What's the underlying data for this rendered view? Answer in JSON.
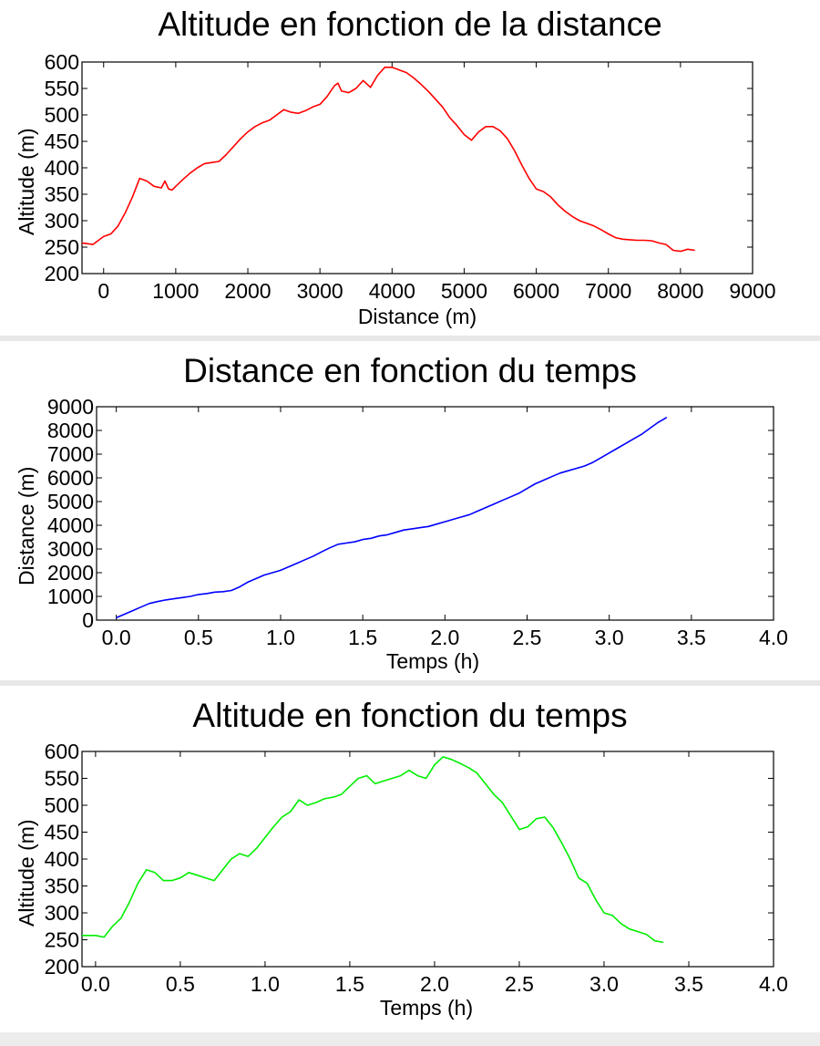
{
  "charts": [
    {
      "title": "Altitude en fonction de la distance",
      "xlabel": "Distance (m)",
      "ylabel": "Altitude (m)",
      "color": "#ff0000",
      "xticks": [
        "0",
        "1000",
        "2000",
        "3000",
        "4000",
        "5000",
        "6000",
        "7000",
        "8000",
        "9000"
      ],
      "yticks": [
        "200",
        "250",
        "300",
        "350",
        "400",
        "450",
        "500",
        "550",
        "600"
      ]
    },
    {
      "title": "Distance en fonction du temps",
      "xlabel": "Temps (h)",
      "ylabel": "Distance (m)",
      "color": "#0000ff",
      "xticks": [
        "0.0",
        "0.5",
        "1.0",
        "1.5",
        "2.0",
        "2.5",
        "3.0",
        "3.5",
        "4.0"
      ],
      "yticks": [
        "0",
        "1000",
        "2000",
        "3000",
        "4000",
        "5000",
        "6000",
        "7000",
        "8000",
        "9000"
      ]
    },
    {
      "title": "Altitude en fonction du temps",
      "xlabel": "Temps (h)",
      "ylabel": "Altitude (m)",
      "color": "#00ee00",
      "xticks": [
        "0.0",
        "0.5",
        "1.0",
        "1.5",
        "2.0",
        "2.5",
        "3.0",
        "3.5",
        "4.0"
      ],
      "yticks": [
        "200",
        "250",
        "300",
        "350",
        "400",
        "450",
        "500",
        "550",
        "600"
      ]
    }
  ],
  "chart_data": [
    {
      "type": "line",
      "title": "Altitude en fonction de la distance",
      "xlabel": "Distance (m)",
      "ylabel": "Altitude (m)",
      "xlim": [
        -300,
        9000
      ],
      "ylim": [
        200,
        600
      ],
      "grid": false,
      "series": [
        {
          "color": "#ff0000",
          "x": [
            -300,
            -150,
            0,
            100,
            200,
            300,
            400,
            500,
            600,
            700,
            800,
            850,
            900,
            950,
            1000,
            1100,
            1200,
            1300,
            1400,
            1500,
            1600,
            1700,
            1800,
            1900,
            2000,
            2100,
            2200,
            2300,
            2400,
            2500,
            2600,
            2700,
            2800,
            2900,
            3000,
            3100,
            3200,
            3250,
            3300,
            3400,
            3500,
            3600,
            3700,
            3800,
            3900,
            4000,
            4100,
            4200,
            4300,
            4400,
            4500,
            4600,
            4700,
            4800,
            4900,
            5000,
            5100,
            5200,
            5300,
            5400,
            5500,
            5600,
            5700,
            5800,
            5900,
            6000,
            6100,
            6200,
            6300,
            6400,
            6500,
            6600,
            6700,
            6800,
            6900,
            7000,
            7100,
            7200,
            7300,
            7400,
            7500,
            7600,
            7700,
            7800,
            7900,
            8000,
            8100,
            8200
          ],
          "y": [
            258,
            255,
            270,
            275,
            290,
            315,
            345,
            380,
            375,
            365,
            362,
            375,
            360,
            358,
            365,
            378,
            390,
            400,
            408,
            410,
            412,
            425,
            440,
            455,
            468,
            478,
            485,
            490,
            500,
            510,
            505,
            503,
            508,
            515,
            520,
            535,
            555,
            560,
            545,
            542,
            550,
            565,
            552,
            575,
            590,
            590,
            585,
            580,
            570,
            558,
            545,
            530,
            515,
            495,
            480,
            463,
            452,
            468,
            478,
            478,
            470,
            455,
            432,
            405,
            380,
            360,
            355,
            345,
            330,
            318,
            308,
            300,
            295,
            290,
            283,
            275,
            268,
            265,
            264,
            263,
            263,
            262,
            258,
            255,
            244,
            242,
            246,
            244
          ]
        }
      ]
    },
    {
      "type": "line",
      "title": "Distance en fonction du temps",
      "xlabel": "Temps (h)",
      "ylabel": "Distance (m)",
      "xlim": [
        -0.12,
        4.0
      ],
      "ylim": [
        0,
        9000
      ],
      "grid": false,
      "series": [
        {
          "color": "#0000ff",
          "x": [
            0.0,
            0.05,
            0.1,
            0.15,
            0.2,
            0.25,
            0.3,
            0.35,
            0.4,
            0.45,
            0.5,
            0.55,
            0.6,
            0.65,
            0.7,
            0.75,
            0.8,
            0.85,
            0.9,
            0.95,
            1.0,
            1.05,
            1.1,
            1.15,
            1.2,
            1.25,
            1.3,
            1.35,
            1.4,
            1.45,
            1.5,
            1.55,
            1.6,
            1.65,
            1.7,
            1.75,
            1.8,
            1.85,
            1.9,
            1.95,
            2.0,
            2.05,
            2.1,
            2.15,
            2.2,
            2.25,
            2.3,
            2.35,
            2.4,
            2.45,
            2.5,
            2.55,
            2.6,
            2.65,
            2.7,
            2.75,
            2.8,
            2.85,
            2.9,
            2.95,
            3.0,
            3.05,
            3.1,
            3.15,
            3.2,
            3.25,
            3.3,
            3.35
          ],
          "y": [
            100,
            250,
            400,
            550,
            700,
            780,
            850,
            900,
            950,
            1000,
            1080,
            1120,
            1180,
            1200,
            1250,
            1400,
            1600,
            1750,
            1900,
            2000,
            2100,
            2250,
            2400,
            2550,
            2700,
            2880,
            3050,
            3200,
            3250,
            3300,
            3400,
            3450,
            3550,
            3600,
            3700,
            3800,
            3850,
            3900,
            3950,
            4050,
            4150,
            4250,
            4350,
            4450,
            4600,
            4750,
            4900,
            5050,
            5200,
            5350,
            5550,
            5750,
            5900,
            6050,
            6200,
            6300,
            6400,
            6500,
            6650,
            6850,
            7050,
            7250,
            7450,
            7650,
            7850,
            8100,
            8350,
            8550
          ]
        }
      ]
    },
    {
      "type": "line",
      "title": "Altitude en fonction du temps",
      "xlabel": "Temps (h)",
      "ylabel": "Altitude (m)",
      "xlim": [
        -0.08,
        4.0
      ],
      "ylim": [
        200,
        600
      ],
      "grid": false,
      "series": [
        {
          "color": "#00ee00",
          "x": [
            -0.08,
            0.0,
            0.05,
            0.1,
            0.15,
            0.2,
            0.25,
            0.3,
            0.35,
            0.4,
            0.45,
            0.5,
            0.55,
            0.6,
            0.65,
            0.7,
            0.75,
            0.8,
            0.85,
            0.9,
            0.95,
            1.0,
            1.05,
            1.1,
            1.15,
            1.2,
            1.25,
            1.3,
            1.35,
            1.4,
            1.45,
            1.5,
            1.55,
            1.6,
            1.65,
            1.7,
            1.75,
            1.8,
            1.85,
            1.9,
            1.95,
            2.0,
            2.05,
            2.1,
            2.15,
            2.2,
            2.25,
            2.3,
            2.35,
            2.4,
            2.45,
            2.5,
            2.55,
            2.6,
            2.65,
            2.7,
            2.75,
            2.8,
            2.85,
            2.9,
            2.95,
            3.0,
            3.05,
            3.1,
            3.15,
            3.2,
            3.25,
            3.3,
            3.35
          ],
          "y": [
            258,
            258,
            255,
            275,
            290,
            320,
            355,
            380,
            375,
            360,
            360,
            365,
            375,
            370,
            365,
            360,
            380,
            400,
            410,
            405,
            420,
            440,
            460,
            478,
            488,
            510,
            500,
            505,
            512,
            515,
            520,
            535,
            550,
            555,
            540,
            545,
            550,
            555,
            565,
            555,
            550,
            575,
            590,
            585,
            578,
            570,
            560,
            540,
            520,
            505,
            480,
            455,
            460,
            475,
            478,
            458,
            430,
            400,
            365,
            355,
            325,
            300,
            295,
            280,
            270,
            265,
            260,
            248,
            245
          ]
        }
      ]
    }
  ]
}
